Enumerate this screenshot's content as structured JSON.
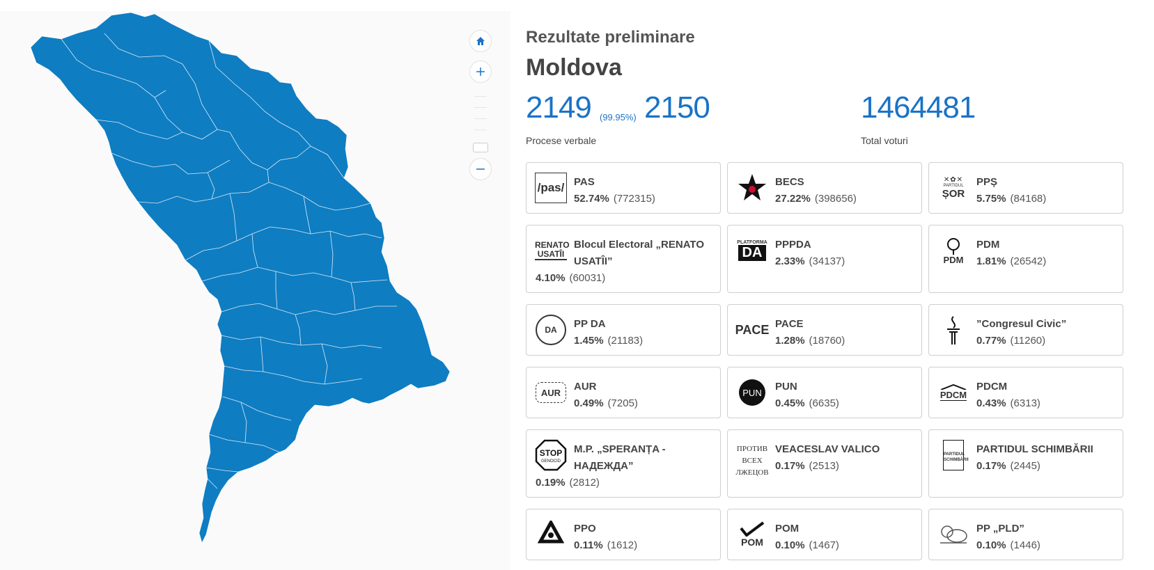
{
  "header": {
    "subtitle": "Rezultate preliminare",
    "region": "Moldova"
  },
  "stats": {
    "processed": "2149",
    "processed_pct": "(99.95%)",
    "total_pv": "2150",
    "pv_label": "Procese verbale",
    "total_votes": "1464481",
    "votes_label": "Total voturi"
  },
  "map": {
    "fill_color": "#0f7dc2",
    "controls": [
      "home-icon",
      "plus-icon",
      "minus-icon"
    ]
  },
  "parties": [
    {
      "name": "PAS",
      "pct": "52.74%",
      "votes": "(772315)",
      "logo": "pas-logo",
      "logo_text": "/pas/"
    },
    {
      "name": "BECS",
      "pct": "27.22%",
      "votes": "(398656)",
      "logo": "star-hammer-sickle-icon",
      "logo_text": ""
    },
    {
      "name": "PPȘ",
      "pct": "5.75%",
      "votes": "(84168)",
      "logo": "partidul-sor-logo",
      "logo_text": "ȘOR"
    },
    {
      "name": "Blocul Electoral „RENATO USATÎI”",
      "pct": "4.10%",
      "votes": "(60031)",
      "logo": "renato-usatii-logo",
      "logo_text": "RENATO USATÎI"
    },
    {
      "name": "PPPDA",
      "pct": "2.33%",
      "votes": "(34137)",
      "logo": "platforma-da-logo",
      "logo_text": "DA"
    },
    {
      "name": "PDM",
      "pct": "1.81%",
      "votes": "(26542)",
      "logo": "pdm-rose-logo",
      "logo_text": "PDM"
    },
    {
      "name": "PP DA",
      "pct": "1.45%",
      "votes": "(21183)",
      "logo": "democratia-acasa-logo",
      "logo_text": "DA"
    },
    {
      "name": "PACE",
      "pct": "1.28%",
      "votes": "(18760)",
      "logo": "pace-logo",
      "logo_text": "PACE"
    },
    {
      "name": "”Congresul Civic”",
      "pct": "0.77%",
      "votes": "(11260)",
      "logo": "congresul-civic-logo",
      "logo_text": ""
    },
    {
      "name": "AUR",
      "pct": "0.49%",
      "votes": "(7205)",
      "logo": "aur-logo",
      "logo_text": "AUR"
    },
    {
      "name": "PUN",
      "pct": "0.45%",
      "votes": "(6635)",
      "logo": "pun-logo",
      "logo_text": "PUN"
    },
    {
      "name": "PDCM",
      "pct": "0.43%",
      "votes": "(6313)",
      "logo": "pdcm-logo",
      "logo_text": "PDCM"
    },
    {
      "name": "M.P. „SPERANȚA - НАДЕЖДА”",
      "pct": "0.19%",
      "votes": "(2812)",
      "logo": "stop-genocid-logo",
      "logo_text": "STOP"
    },
    {
      "name": "VEACESLAV VALICO",
      "pct": "0.17%",
      "votes": "(2513)",
      "logo": "protiv-vseh-logo",
      "logo_text": "ПРОТИВ ВСЕХ ЛЖЕЦОВ"
    },
    {
      "name": "PARTIDUL SCHIMBĂRII",
      "pct": "0.17%",
      "votes": "(2445)",
      "logo": "partidul-schimbarii-logo",
      "logo_text": "PARTIDUL SCHIMBĂRII"
    },
    {
      "name": "PPO",
      "pct": "0.11%",
      "votes": "(1612)",
      "logo": "ppo-logo",
      "logo_text": ""
    },
    {
      "name": "POM",
      "pct": "0.10%",
      "votes": "(1467)",
      "logo": "pom-logo",
      "logo_text": "POM"
    },
    {
      "name": "PP „PLD”",
      "pct": "0.10%",
      "votes": "(1446)",
      "logo": "pld-lion-logo",
      "logo_text": ""
    }
  ]
}
